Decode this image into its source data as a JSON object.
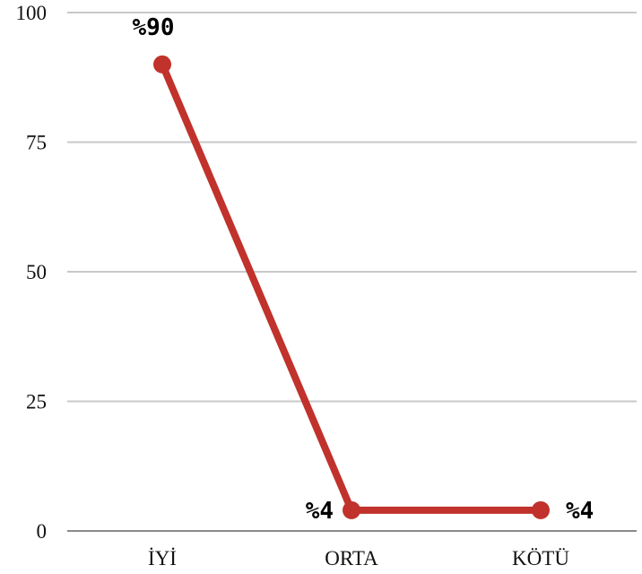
{
  "chart_data": {
    "type": "line",
    "categories": [
      "İYİ",
      "ORTA",
      "KÖTÜ"
    ],
    "series": [
      {
        "values": [
          90,
          4,
          4
        ],
        "labels": [
          "%90",
          "%4",
          "%4"
        ],
        "color": "#c0322b"
      }
    ],
    "ylim": [
      0,
      100
    ],
    "yticks": [
      0,
      25,
      50,
      75,
      100
    ],
    "grid": true,
    "title": "",
    "xlabel": "",
    "ylabel": ""
  }
}
